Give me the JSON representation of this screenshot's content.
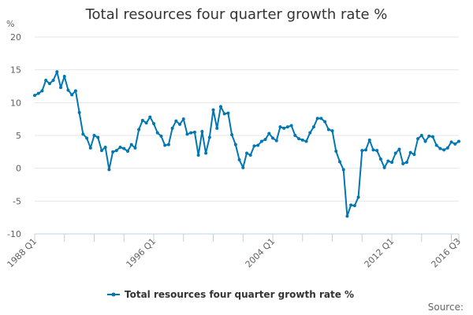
{
  "chart_data": {
    "type": "line",
    "title": "Total resources four quarter growth rate %",
    "ylabel": "%",
    "xlabel": "",
    "ylim": [
      -10,
      20
    ],
    "yticks": [
      -10,
      -5,
      0,
      5,
      10,
      15,
      20
    ],
    "grid": true,
    "legend_position": "bottom",
    "source_label": "Source:",
    "x_start": "1988 Q1",
    "x_end": "2016 Q3",
    "x_tick_labels": [
      {
        "index": 0,
        "label": "1988 Q1"
      },
      {
        "index": 32,
        "label": "1996 Q1"
      },
      {
        "index": 64,
        "label": "2004 Q1"
      },
      {
        "index": 96,
        "label": "2012 Q1"
      },
      {
        "index": 114,
        "label": "2016 Q3"
      }
    ],
    "x_minor_tick_indices": [
      0,
      8,
      16,
      24,
      32,
      40,
      48,
      56,
      64,
      72,
      80,
      88,
      96,
      104,
      112
    ],
    "series": [
      {
        "name": "Total resources four quarter growth rate %",
        "color": "#0077b3",
        "values": [
          11.1,
          11.4,
          11.8,
          13.4,
          12.9,
          13.4,
          14.7,
          12.3,
          14.0,
          11.9,
          11.2,
          11.8,
          8.5,
          5.2,
          4.6,
          3.1,
          5.0,
          4.7,
          2.7,
          3.2,
          -0.2,
          2.5,
          2.7,
          3.2,
          3.0,
          2.6,
          3.6,
          3.1,
          5.9,
          7.3,
          6.9,
          7.8,
          6.8,
          5.4,
          4.9,
          3.5,
          3.6,
          6.1,
          7.2,
          6.7,
          7.5,
          5.2,
          5.4,
          5.5,
          2.0,
          5.6,
          2.3,
          4.7,
          8.9,
          6.1,
          9.4,
          8.3,
          8.4,
          5.1,
          3.6,
          1.3,
          0.1,
          2.3,
          2.0,
          3.4,
          3.5,
          4.1,
          4.4,
          5.3,
          4.6,
          4.2,
          6.3,
          6.1,
          6.3,
          6.5,
          5.0,
          4.5,
          4.3,
          4.1,
          5.4,
          6.3,
          7.6,
          7.6,
          7.1,
          5.9,
          5.7,
          2.6,
          1.0,
          -0.2,
          -7.3,
          -5.6,
          -5.7,
          -4.4,
          2.7,
          2.8,
          4.3,
          2.8,
          2.7,
          1.4,
          0.1,
          1.1,
          0.9,
          2.3,
          2.9,
          0.7,
          0.9,
          2.4,
          2.1,
          4.5,
          5.0,
          4.1,
          4.9,
          4.8,
          3.5,
          3.0,
          2.8,
          3.1,
          4.0,
          3.7,
          4.1
        ]
      }
    ]
  }
}
